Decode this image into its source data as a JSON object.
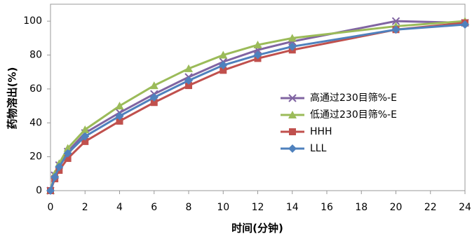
{
  "chart_data": {
    "type": "line",
    "x_label": "时间(分钟)",
    "y_label": "药物溶出(%)",
    "x": [
      0,
      0.25,
      0.5,
      1,
      2,
      4,
      6,
      8,
      10,
      12,
      14,
      20,
      24
    ],
    "series": [
      {
        "name": "高通过230目筛%-E",
        "color": "#8064a2",
        "marker": "x",
        "values": [
          0,
          9,
          15,
          23,
          34,
          46,
          57,
          67,
          76,
          83,
          88,
          100,
          99
        ]
      },
      {
        "name": "低通过230目筛%-E",
        "color": "#9bbb59",
        "marker": "triangle",
        "values": [
          0,
          10,
          16,
          25,
          36,
          50,
          62,
          72,
          80,
          86,
          90,
          97,
          100
        ]
      },
      {
        "name": "HHH",
        "color": "#c0504d",
        "marker": "square",
        "values": [
          0,
          7,
          12,
          19,
          29,
          41,
          52,
          62,
          71,
          78,
          83,
          95,
          99
        ]
      },
      {
        "name": "LLL",
        "color": "#4f81bd",
        "marker": "diamond",
        "values": [
          0,
          8,
          14,
          22,
          32,
          44,
          55,
          65,
          74,
          80,
          85,
          95,
          98
        ]
      }
    ],
    "xlim": [
      0,
      24
    ],
    "xticks": [
      0,
      2,
      4,
      6,
      8,
      10,
      12,
      14,
      16,
      18,
      20,
      22,
      24
    ],
    "ylim": [
      0,
      110
    ],
    "yticks": [
      0,
      20,
      40,
      60,
      80,
      100
    ],
    "grid": false,
    "legend": "right"
  }
}
